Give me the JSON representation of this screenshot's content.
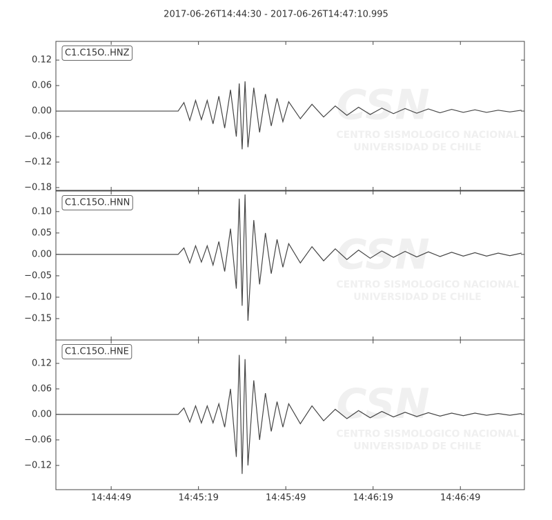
{
  "title": "2017-06-26T14:44:30  -  2017-06-26T14:47:10.995",
  "watermark": {
    "logo": "CSN",
    "name": "CENTRO SISMOLOGICO NACIONAL",
    "institution": "UNIVERSIDAD DE CHILE"
  },
  "chart_data": [
    {
      "type": "line",
      "label": "C1.C15O..HNZ",
      "color": "#444444",
      "xlim": [
        0,
        160.995
      ],
      "ylim": [
        -0.1865,
        0.164
      ],
      "yticks": [
        {
          "value": 0.12,
          "label": "0.12"
        },
        {
          "value": 0.06,
          "label": "0.06"
        },
        {
          "value": 0,
          "label": "0.00"
        },
        {
          "value": -0.06,
          "label": "−0.06"
        },
        {
          "value": -0.12,
          "label": "−0.12"
        },
        {
          "value": -0.18,
          "label": "−0.18"
        }
      ],
      "x": [
        0,
        42,
        44,
        46,
        48,
        50,
        52,
        54,
        56,
        58,
        60,
        62,
        63,
        64,
        65,
        66,
        68,
        70,
        72,
        74,
        76,
        78,
        80,
        84,
        88,
        92,
        96,
        100,
        104,
        108,
        112,
        116,
        120,
        124,
        128,
        132,
        136,
        140,
        144,
        148,
        152,
        156,
        160
      ],
      "values": [
        0,
        0,
        0.02,
        -0.022,
        0.025,
        -0.02,
        0.025,
        -0.03,
        0.035,
        -0.04,
        0.05,
        -0.06,
        0.065,
        -0.09,
        0.07,
        -0.085,
        0.055,
        -0.05,
        0.04,
        -0.035,
        0.03,
        -0.025,
        0.022,
        -0.018,
        0.016,
        -0.014,
        0.012,
        -0.01,
        0.009,
        -0.008,
        0.007,
        -0.006,
        0.006,
        -0.005,
        0.005,
        -0.004,
        0.004,
        -0.003,
        0.003,
        -0.003,
        0.002,
        -0.002,
        0.002
      ]
    },
    {
      "type": "line",
      "label": "C1.C15O..HNN",
      "color": "#444444",
      "xlim": [
        0,
        160.995
      ],
      "ylim": [
        -0.2,
        0.148
      ],
      "yticks": [
        {
          "value": 0.1,
          "label": "0.10"
        },
        {
          "value": 0.05,
          "label": "0.05"
        },
        {
          "value": 0,
          "label": "0.00"
        },
        {
          "value": -0.05,
          "label": "−0.05"
        },
        {
          "value": -0.1,
          "label": "−0.10"
        },
        {
          "value": -0.15,
          "label": "−0.15"
        }
      ],
      "x": [
        0,
        42,
        44,
        46,
        48,
        50,
        52,
        54,
        56,
        58,
        60,
        62,
        63,
        64,
        65,
        66,
        68,
        70,
        72,
        74,
        76,
        78,
        80,
        84,
        88,
        92,
        96,
        100,
        104,
        108,
        112,
        116,
        120,
        124,
        128,
        132,
        136,
        140,
        144,
        148,
        152,
        156,
        160
      ],
      "values": [
        0,
        0,
        0.015,
        -0.02,
        0.02,
        -0.018,
        0.02,
        -0.025,
        0.03,
        -0.04,
        0.06,
        -0.08,
        0.13,
        -0.12,
        0.14,
        -0.155,
        0.08,
        -0.07,
        0.05,
        -0.045,
        0.035,
        -0.03,
        0.025,
        -0.02,
        0.018,
        -0.015,
        0.013,
        -0.012,
        0.01,
        -0.009,
        0.008,
        -0.007,
        0.007,
        -0.006,
        0.006,
        -0.005,
        0.005,
        -0.004,
        0.004,
        -0.004,
        0.003,
        -0.003,
        0.003
      ]
    },
    {
      "type": "line",
      "label": "C1.C15O..HNE",
      "color": "#444444",
      "xlim": [
        0,
        160.995
      ],
      "ylim": [
        -0.177,
        0.175
      ],
      "yticks": [
        {
          "value": 0.12,
          "label": "0.12"
        },
        {
          "value": 0.06,
          "label": "0.06"
        },
        {
          "value": 0,
          "label": "0.00"
        },
        {
          "value": -0.06,
          "label": "−0.06"
        },
        {
          "value": -0.12,
          "label": "−0.12"
        }
      ],
      "xticks": [
        {
          "value": 19,
          "label": "14:44:49"
        },
        {
          "value": 49,
          "label": "14:45:19"
        },
        {
          "value": 79,
          "label": "14:45:49"
        },
        {
          "value": 109,
          "label": "14:46:19"
        },
        {
          "value": 139,
          "label": "14:46:49"
        }
      ],
      "x": [
        0,
        42,
        44,
        46,
        48,
        50,
        52,
        54,
        56,
        58,
        60,
        62,
        63,
        64,
        65,
        66,
        68,
        70,
        72,
        74,
        76,
        78,
        80,
        84,
        88,
        92,
        96,
        100,
        104,
        108,
        112,
        116,
        120,
        124,
        128,
        132,
        136,
        140,
        144,
        148,
        152,
        156,
        160
      ],
      "values": [
        0,
        0,
        0.015,
        -0.018,
        0.02,
        -0.02,
        0.02,
        -0.02,
        0.025,
        -0.03,
        0.06,
        -0.1,
        0.14,
        -0.14,
        0.13,
        -0.12,
        0.08,
        -0.06,
        0.05,
        -0.04,
        0.03,
        -0.03,
        0.025,
        -0.022,
        0.02,
        -0.015,
        0.012,
        -0.01,
        0.009,
        -0.008,
        0.007,
        -0.006,
        0.005,
        -0.005,
        0.004,
        -0.004,
        0.003,
        -0.003,
        0.003,
        -0.002,
        0.002,
        -0.002,
        0.002
      ]
    }
  ]
}
